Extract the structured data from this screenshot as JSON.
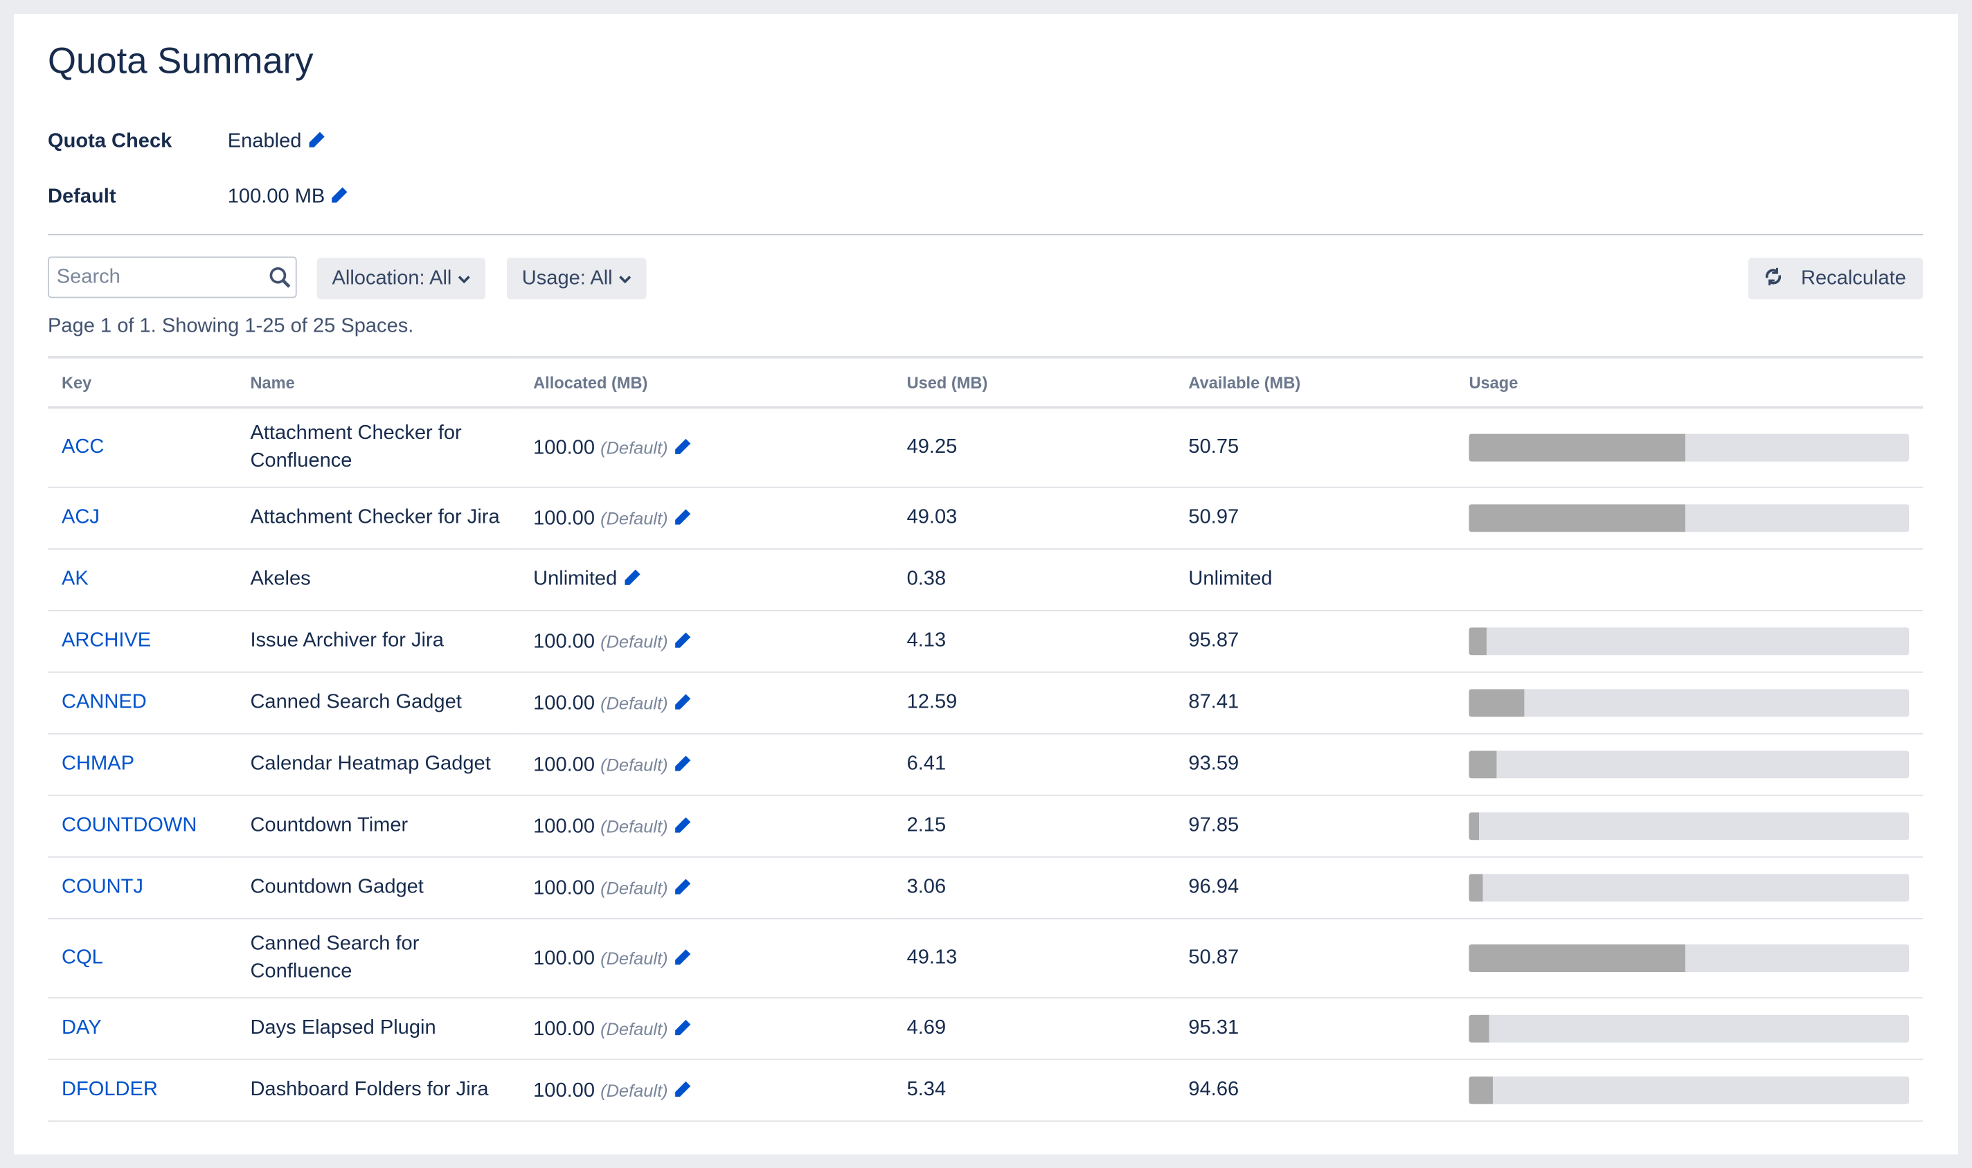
{
  "header": {
    "title": "Quota Summary"
  },
  "settings": [
    {
      "label": "Quota Check",
      "value": "Enabled"
    },
    {
      "label": "Default",
      "value": "100.00 MB"
    }
  ],
  "toolbar": {
    "search_placeholder": "Search",
    "filters": [
      "Allocation: All",
      "Usage: All"
    ],
    "recalculate": "Recalculate"
  },
  "pagination": "Page 1 of 1. Showing 1-25 of 25 Spaces.",
  "table": {
    "columns": [
      "Key",
      "Name",
      "Allocated (MB)",
      "Used (MB)",
      "Available (MB)",
      "Usage"
    ],
    "rows": [
      {
        "key": "ACC",
        "name": "Attachment Checker for Confluence",
        "allocated": "100.00",
        "allocated_note": "(Default)",
        "used": "49.25",
        "available": "50.75"
      },
      {
        "key": "ACJ",
        "name": "Attachment Checker for Jira",
        "allocated": "100.00",
        "allocated_note": "(Default)",
        "used": "49.03",
        "available": "50.97"
      },
      {
        "key": "AK",
        "name": "Akeles",
        "allocated": "Unlimited",
        "used": "0.38",
        "available": "Unlimited"
      },
      {
        "key": "ARCHIVE",
        "name": "Issue Archiver for Jira",
        "allocated": "100.00",
        "allocated_note": "(Default)",
        "used": "4.13",
        "available": "95.87"
      },
      {
        "key": "CANNED",
        "name": "Canned Search Gadget",
        "allocated": "100.00",
        "allocated_note": "(Default)",
        "used": "12.59",
        "available": "87.41"
      },
      {
        "key": "CHMAP",
        "name": "Calendar Heatmap Gadget",
        "allocated": "100.00",
        "allocated_note": "(Default)",
        "used": "6.41",
        "available": "93.59"
      },
      {
        "key": "COUNTDOWN",
        "name": "Countdown Timer",
        "allocated": "100.00",
        "allocated_note": "(Default)",
        "used": "2.15",
        "available": "97.85"
      },
      {
        "key": "COUNTJ",
        "name": "Countdown Gadget",
        "allocated": "100.00",
        "allocated_note": "(Default)",
        "used": "3.06",
        "available": "96.94"
      },
      {
        "key": "CQL",
        "name": "Canned Search for Confluence",
        "allocated": "100.00",
        "allocated_note": "(Default)",
        "used": "49.13",
        "available": "50.87"
      },
      {
        "key": "DAY",
        "name": "Days Elapsed Plugin",
        "allocated": "100.00",
        "allocated_note": "(Default)",
        "used": "4.69",
        "available": "95.31"
      },
      {
        "key": "DFOLDER",
        "name": "Dashboard Folders for Jira",
        "allocated": "100.00",
        "allocated_note": "(Default)",
        "used": "5.34",
        "available": "94.66"
      }
    ]
  }
}
